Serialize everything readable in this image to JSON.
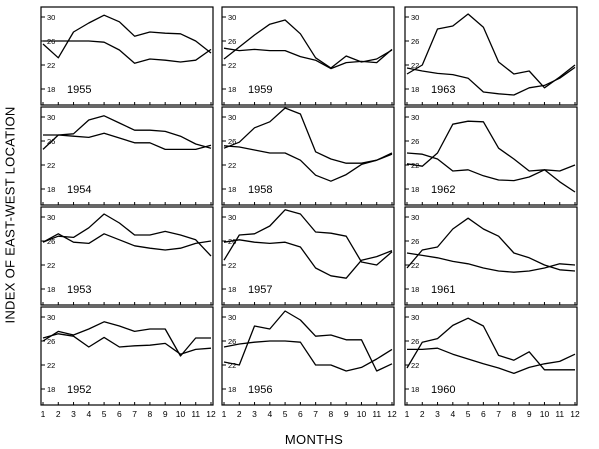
{
  "figure": {
    "ylabel": "INDEX OF EAST-WEST LOCATION",
    "xlabel": "MONTHS"
  },
  "chart_data": [
    {
      "type": "line",
      "title": "1955",
      "x": [
        1,
        2,
        3,
        4,
        5,
        6,
        7,
        8,
        9,
        10,
        11,
        12
      ],
      "ylim": [
        16,
        31
      ],
      "yticks": [
        18,
        22,
        26,
        30
      ],
      "series": [
        {
          "values": [
            25.5,
            23.2,
            27.5,
            29.0,
            30.3,
            29.2,
            26.8,
            27.5,
            27.3,
            27.2,
            26.0,
            24.0
          ]
        },
        {
          "values": [
            26.0,
            26.0,
            26.0,
            26.0,
            25.8,
            24.5,
            22.3,
            23.0,
            22.8,
            22.5,
            22.8,
            24.6
          ]
        }
      ]
    },
    {
      "type": "line",
      "title": "1959",
      "x": [
        1,
        2,
        3,
        4,
        5,
        6,
        7,
        8,
        9,
        10,
        11,
        12
      ],
      "ylim": [
        16,
        31
      ],
      "yticks": [
        18,
        22,
        26,
        30
      ],
      "series": [
        {
          "values": [
            23.0,
            25.0,
            27.0,
            28.8,
            29.5,
            27.2,
            23.2,
            21.5,
            23.5,
            22.5,
            23.0,
            24.5
          ]
        },
        {
          "values": [
            24.8,
            24.4,
            24.6,
            24.4,
            24.4,
            23.4,
            22.8,
            21.4,
            22.4,
            22.6,
            22.4,
            24.6
          ]
        }
      ]
    },
    {
      "type": "line",
      "title": "1963",
      "x": [
        1,
        2,
        3,
        4,
        5,
        6,
        7,
        8,
        9,
        10,
        11,
        12
      ],
      "ylim": [
        16,
        31
      ],
      "yticks": [
        18,
        22,
        26,
        30
      ],
      "series": [
        {
          "values": [
            20.5,
            22.0,
            28.0,
            28.5,
            30.5,
            28.3,
            22.5,
            20.5,
            21.0,
            18.2,
            20.0,
            22.0
          ]
        },
        {
          "values": [
            21.5,
            21.0,
            20.6,
            20.4,
            19.8,
            17.5,
            17.2,
            17.0,
            18.2,
            18.6,
            19.8,
            21.6
          ]
        }
      ]
    },
    {
      "type": "line",
      "title": "1954",
      "x": [
        1,
        2,
        3,
        4,
        5,
        6,
        7,
        8,
        9,
        10,
        11,
        12
      ],
      "ylim": [
        16,
        31
      ],
      "yticks": [
        18,
        22,
        26,
        30
      ],
      "series": [
        {
          "values": [
            24.6,
            27.0,
            27.2,
            29.5,
            30.2,
            29.0,
            27.8,
            27.8,
            27.6,
            26.8,
            25.5,
            24.8
          ]
        },
        {
          "values": [
            27.0,
            27.0,
            26.8,
            26.6,
            27.3,
            26.5,
            25.7,
            25.7,
            24.6,
            24.6,
            24.6,
            25.3
          ]
        }
      ]
    },
    {
      "type": "line",
      "title": "1958",
      "x": [
        1,
        2,
        3,
        4,
        5,
        6,
        7,
        8,
        9,
        10,
        11,
        12
      ],
      "ylim": [
        16,
        31
      ],
      "yticks": [
        18,
        22,
        26,
        30
      ],
      "series": [
        {
          "values": [
            24.8,
            25.8,
            28.2,
            29.2,
            31.5,
            30.5,
            24.2,
            23.0,
            22.3,
            22.3,
            22.8,
            24.0
          ]
        },
        {
          "values": [
            25.2,
            25.0,
            24.5,
            24.0,
            24.0,
            22.8,
            20.3,
            19.3,
            20.4,
            22.1,
            22.8,
            23.8
          ]
        }
      ]
    },
    {
      "type": "line",
      "title": "1962",
      "x": [
        1,
        2,
        3,
        4,
        5,
        6,
        7,
        8,
        9,
        10,
        11,
        12
      ],
      "ylim": [
        16,
        31
      ],
      "yticks": [
        18,
        22,
        26,
        30
      ],
      "series": [
        {
          "values": [
            22.2,
            21.8,
            24.0,
            28.8,
            29.3,
            29.2,
            24.8,
            23.0,
            21.0,
            21.2,
            21.0,
            22.0
          ]
        },
        {
          "values": [
            24.0,
            23.8,
            23.0,
            21.0,
            21.2,
            20.2,
            19.5,
            19.4,
            20.0,
            21.2,
            19.2,
            17.5
          ]
        }
      ]
    },
    {
      "type": "line",
      "title": "1953",
      "x": [
        1,
        2,
        3,
        4,
        5,
        6,
        7,
        8,
        9,
        10,
        11,
        12
      ],
      "ylim": [
        16,
        31
      ],
      "yticks": [
        18,
        22,
        26,
        30
      ],
      "series": [
        {
          "values": [
            25.8,
            26.8,
            26.6,
            28.2,
            30.5,
            29.0,
            27.0,
            27.0,
            27.6,
            27.0,
            26.2,
            23.5
          ]
        },
        {
          "values": [
            25.8,
            27.2,
            25.8,
            25.6,
            27.2,
            26.2,
            25.2,
            24.8,
            24.5,
            24.8,
            25.6,
            26.0
          ]
        }
      ]
    },
    {
      "type": "line",
      "title": "1957",
      "x": [
        1,
        2,
        3,
        4,
        5,
        6,
        7,
        8,
        9,
        10,
        11,
        12
      ],
      "ylim": [
        16,
        31
      ],
      "yticks": [
        18,
        22,
        26,
        30
      ],
      "series": [
        {
          "values": [
            22.8,
            27.0,
            27.2,
            28.5,
            31.2,
            30.5,
            27.5,
            27.3,
            26.8,
            22.5,
            22.0,
            24.2
          ]
        },
        {
          "values": [
            25.8,
            26.2,
            25.8,
            25.6,
            25.8,
            25.0,
            21.5,
            20.2,
            19.8,
            22.8,
            23.4,
            24.4
          ]
        }
      ]
    },
    {
      "type": "line",
      "title": "1961",
      "x": [
        1,
        2,
        3,
        4,
        5,
        6,
        7,
        8,
        9,
        10,
        11,
        12
      ],
      "ylim": [
        16,
        31
      ],
      "yticks": [
        18,
        22,
        26,
        30
      ],
      "series": [
        {
          "values": [
            21.5,
            24.5,
            25.0,
            28.0,
            29.8,
            28.0,
            26.8,
            24.0,
            23.2,
            22.0,
            21.2,
            21.0
          ]
        },
        {
          "values": [
            24.0,
            23.6,
            23.2,
            22.6,
            22.2,
            21.5,
            21.0,
            20.8,
            21.0,
            21.5,
            22.2,
            22.0
          ]
        }
      ]
    },
    {
      "type": "line",
      "title": "1952",
      "x": [
        1,
        2,
        3,
        4,
        5,
        6,
        7,
        8,
        9,
        10,
        11,
        12
      ],
      "ylim": [
        16,
        31
      ],
      "yticks": [
        18,
        22,
        26,
        30
      ],
      "series": [
        {
          "values": [
            26.0,
            27.6,
            27.0,
            28.0,
            29.2,
            28.5,
            27.6,
            28.0,
            28.0,
            23.5,
            26.5,
            26.5
          ]
        },
        {
          "values": [
            26.5,
            27.2,
            26.8,
            25.0,
            26.6,
            25.0,
            25.2,
            25.3,
            25.6,
            23.8,
            24.6,
            24.8
          ]
        }
      ]
    },
    {
      "type": "line",
      "title": "1956",
      "x": [
        1,
        2,
        3,
        4,
        5,
        6,
        7,
        8,
        9,
        10,
        11,
        12
      ],
      "ylim": [
        16,
        31
      ],
      "yticks": [
        18,
        22,
        26,
        30
      ],
      "series": [
        {
          "values": [
            22.5,
            22.0,
            28.5,
            28.0,
            31.0,
            29.5,
            26.8,
            27.0,
            26.2,
            26.2,
            21.0,
            22.2
          ]
        },
        {
          "values": [
            25.0,
            25.5,
            25.8,
            26.0,
            26.0,
            25.8,
            22.0,
            22.0,
            21.0,
            21.6,
            23.0,
            24.6
          ]
        }
      ]
    },
    {
      "type": "line",
      "title": "1960",
      "x": [
        1,
        2,
        3,
        4,
        5,
        6,
        7,
        8,
        9,
        10,
        11,
        12
      ],
      "ylim": [
        16,
        31
      ],
      "yticks": [
        18,
        22,
        26,
        30
      ],
      "series": [
        {
          "values": [
            21.5,
            25.8,
            26.4,
            28.6,
            29.8,
            28.5,
            23.6,
            22.8,
            24.2,
            21.2,
            21.2,
            21.2
          ]
        },
        {
          "values": [
            24.6,
            24.6,
            24.8,
            23.8,
            23.0,
            22.2,
            21.5,
            20.6,
            21.6,
            22.2,
            22.6,
            23.8
          ]
        }
      ]
    }
  ]
}
